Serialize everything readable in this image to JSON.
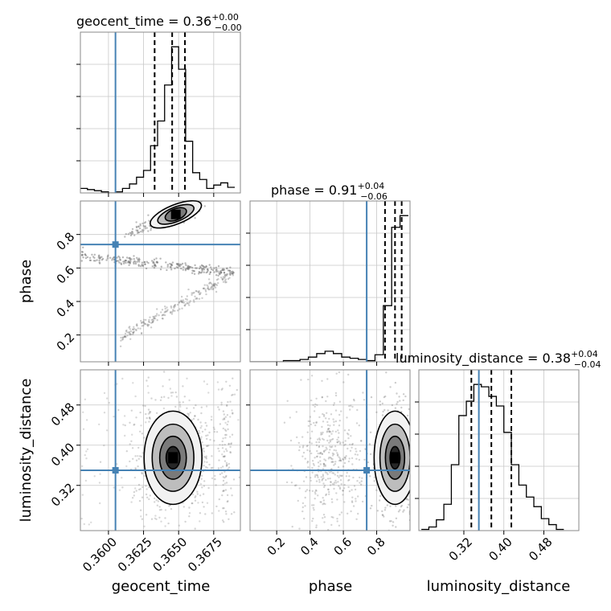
{
  "colors": {
    "truth": "#4682b4",
    "hist": "#000000",
    "scatter": "#707070",
    "grid": "#c8c8c8"
  },
  "chart_data": {
    "type": "corner",
    "parameters": [
      "geocent_time",
      "phase",
      "luminosity_distance"
    ],
    "truths": {
      "geocent_time": 0.3605,
      "phase": 0.74,
      "luminosity_distance": 0.35
    },
    "ranges": {
      "geocent_time": [
        0.358,
        0.3694
      ],
      "phase": [
        0.04,
        1.0
      ],
      "luminosity_distance": [
        0.23,
        0.55
      ]
    },
    "titles": {
      "geocent_time": {
        "median": "0.36",
        "plus": "+0.00",
        "minus": "−0.00"
      },
      "phase": {
        "median": "0.91",
        "plus": "+0.04",
        "minus": "−0.06"
      },
      "luminosity_distance": {
        "median": "0.38",
        "plus": "+0.04",
        "minus": "−0.04"
      }
    },
    "quantiles": {
      "geocent_time": [
        0.36329,
        0.36454,
        0.36545
      ],
      "phase": [
        0.85,
        0.91,
        0.95
      ],
      "luminosity_distance": [
        0.335,
        0.375,
        0.415
      ]
    },
    "ticks": {
      "geocent_time": [
        "0.3600",
        "0.3625",
        "0.3650",
        "0.3675"
      ],
      "phase_x": [
        "0.2",
        "0.4",
        "0.6",
        "0.8"
      ],
      "phase_y": [
        "0.2",
        "0.4",
        "0.6",
        "0.8"
      ],
      "luminosity_distance": [
        "0.32",
        "0.40",
        "0.48"
      ]
    },
    "histograms": {
      "geocent_time": {
        "edges": [
          0.358,
          0.3585,
          0.359,
          0.3595,
          0.36,
          0.3605,
          0.361,
          0.3615,
          0.362,
          0.3625,
          0.363,
          0.3635,
          0.364,
          0.3645,
          0.365,
          0.3655,
          0.366,
          0.3665,
          0.367,
          0.3675,
          0.368,
          0.3685,
          0.369
        ],
        "counts": [
          4,
          3,
          2,
          1,
          0,
          1,
          4,
          8,
          14,
          20,
          42,
          64,
          96,
          130,
          110,
          46,
          18,
          12,
          4,
          7,
          9,
          5
        ]
      },
      "phase": {
        "edges": [
          0.04,
          0.09,
          0.14,
          0.19,
          0.24,
          0.29,
          0.34,
          0.39,
          0.44,
          0.49,
          0.54,
          0.59,
          0.64,
          0.69,
          0.74,
          0.79,
          0.84,
          0.89,
          0.94,
          0.99
        ],
        "counts": [
          0,
          0,
          0,
          0,
          1,
          1,
          2,
          4,
          7,
          9,
          7,
          4,
          3,
          2,
          1,
          6,
          48,
          115,
          125
        ]
      },
      "luminosity_distance": {
        "edges": [
          0.235,
          0.25,
          0.265,
          0.28,
          0.295,
          0.31,
          0.325,
          0.34,
          0.355,
          0.37,
          0.385,
          0.4,
          0.415,
          0.43,
          0.445,
          0.46,
          0.475,
          0.49,
          0.505,
          0.52
        ],
        "counts": [
          1,
          3,
          9,
          22,
          55,
          96,
          108,
          122,
          120,
          112,
          104,
          82,
          55,
          38,
          28,
          20,
          10,
          5,
          1
        ]
      }
    },
    "contour_centers": {
      "geocent_time_vs_luminosity_distance": {
        "x": 0.3646,
        "y": 0.375
      },
      "phase_vs_luminosity_distance": {
        "x": 0.91,
        "y": 0.375
      },
      "geocent_time_vs_phase": {
        "x": 0.3648,
        "y": 0.92
      }
    },
    "grid": true
  }
}
